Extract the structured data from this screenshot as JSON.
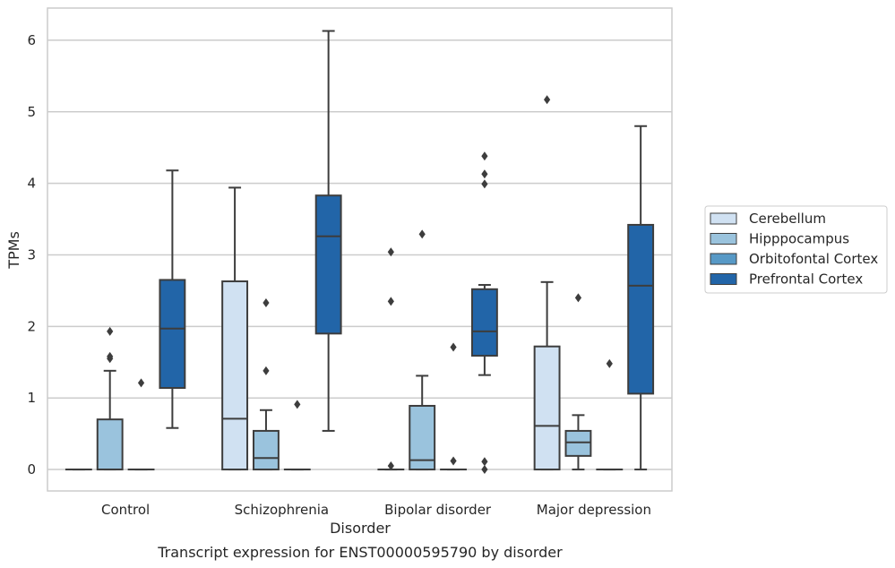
{
  "chart_data": {
    "type": "boxplot",
    "xlabel": "Disorder",
    "ylabel": "TPMs",
    "caption": "Transcript expression for ENST00000595790 by disorder",
    "categories": [
      "Control",
      "Schizophrenia",
      "Bipolar disorder",
      "Major depression"
    ],
    "yticks": [
      0,
      1,
      2,
      3,
      4,
      5,
      6
    ],
    "ylim": [
      -0.3,
      6.45
    ],
    "grid": "horizontal",
    "legend_position": "right",
    "series": [
      {
        "name": "Cerebellum",
        "color": "#d0e1f2",
        "boxes": [
          {
            "q1": 0,
            "median": 0,
            "q3": 0,
            "whislo": 0,
            "whishi": 0,
            "fliers": []
          },
          {
            "q1": 0,
            "median": 0.71,
            "q3": 2.63,
            "whislo": 0,
            "whishi": 3.94,
            "fliers": []
          },
          {
            "q1": 0,
            "median": 0,
            "q3": 0,
            "whislo": 0,
            "whishi": 0,
            "fliers": [
              0.05,
              2.35,
              3.04
            ]
          },
          {
            "q1": 0,
            "median": 0.61,
            "q3": 1.72,
            "whislo": 0,
            "whishi": 2.62,
            "fliers": [
              5.17
            ]
          }
        ]
      },
      {
        "name": "Hipppocampus",
        "color": "#9ac3dd",
        "boxes": [
          {
            "q1": 0,
            "median": 0,
            "q3": 0.7,
            "whislo": 0,
            "whishi": 1.38,
            "fliers": [
              1.55,
              1.58,
              1.93
            ]
          },
          {
            "q1": 0,
            "median": 0.16,
            "q3": 0.54,
            "whislo": 0,
            "whishi": 0.83,
            "fliers": [
              1.38,
              2.33
            ]
          },
          {
            "q1": 0,
            "median": 0.13,
            "q3": 0.89,
            "whislo": 0,
            "whishi": 1.31,
            "fliers": [
              3.29
            ]
          },
          {
            "q1": 0.19,
            "median": 0.38,
            "q3": 0.54,
            "whislo": 0,
            "whishi": 0.76,
            "fliers": [
              2.4
            ]
          }
        ]
      },
      {
        "name": "Orbitofontal Cortex",
        "color": "#5799c6",
        "boxes": [
          {
            "q1": 0,
            "median": 0,
            "q3": 0,
            "whislo": 0,
            "whishi": 0,
            "fliers": [
              1.21
            ]
          },
          {
            "q1": 0,
            "median": 0,
            "q3": 0,
            "whislo": 0,
            "whishi": 0,
            "fliers": [
              0.91
            ]
          },
          {
            "q1": 0,
            "median": 0,
            "q3": 0,
            "whislo": 0,
            "whishi": 0,
            "fliers": [
              0.12,
              1.71
            ]
          },
          {
            "q1": 0,
            "median": 0,
            "q3": 0,
            "whislo": 0,
            "whishi": 0,
            "fliers": [
              1.48
            ]
          }
        ]
      },
      {
        "name": "Prefrontal Cortex",
        "color": "#2265a8",
        "boxes": [
          {
            "q1": 1.14,
            "median": 1.97,
            "q3": 2.65,
            "whislo": 0.58,
            "whishi": 4.18,
            "fliers": []
          },
          {
            "q1": 1.9,
            "median": 3.26,
            "q3": 3.83,
            "whislo": 0.54,
            "whishi": 6.13,
            "fliers": []
          },
          {
            "q1": 1.59,
            "median": 1.93,
            "q3": 2.52,
            "whislo": 1.32,
            "whishi": 2.58,
            "fliers": [
              0,
              0.11,
              3.99,
              4.13,
              4.38
            ]
          },
          {
            "q1": 1.06,
            "median": 2.57,
            "q3": 3.42,
            "whislo": 0,
            "whishi": 4.8,
            "fliers": []
          }
        ]
      }
    ]
  }
}
